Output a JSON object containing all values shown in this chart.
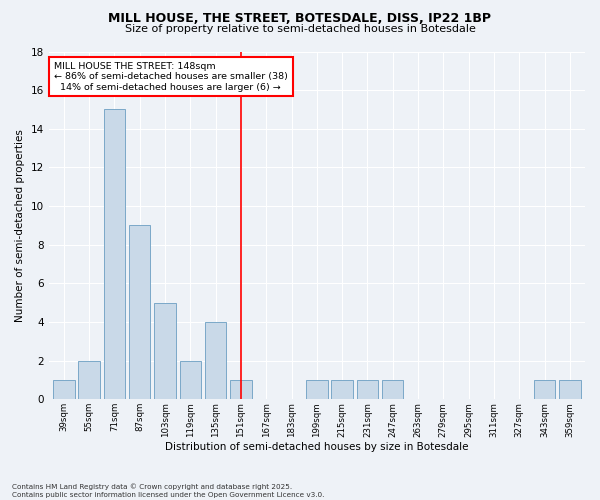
{
  "title": "MILL HOUSE, THE STREET, BOTESDALE, DISS, IP22 1BP",
  "subtitle": "Size of property relative to semi-detached houses in Botesdale",
  "xlabel": "Distribution of semi-detached houses by size in Botesdale",
  "ylabel": "Number of semi-detached properties",
  "categories": [
    "39sqm",
    "55sqm",
    "71sqm",
    "87sqm",
    "103sqm",
    "119sqm",
    "135sqm",
    "151sqm",
    "167sqm",
    "183sqm",
    "199sqm",
    "215sqm",
    "231sqm",
    "247sqm",
    "263sqm",
    "279sqm",
    "295sqm",
    "311sqm",
    "327sqm",
    "343sqm",
    "359sqm"
  ],
  "values": [
    1,
    2,
    15,
    9,
    5,
    2,
    4,
    1,
    0,
    0,
    1,
    1,
    1,
    1,
    0,
    0,
    0,
    0,
    0,
    1,
    1
  ],
  "bar_color": "#c9d9e8",
  "bar_edge_color": "#7aa8c8",
  "property_line_index": 7,
  "property_label": "MILL HOUSE THE STREET: 148sqm",
  "pct_smaller": 86,
  "count_smaller": 38,
  "pct_larger": 14,
  "count_larger": 6,
  "ylim": [
    0,
    18
  ],
  "yticks": [
    0,
    2,
    4,
    6,
    8,
    10,
    12,
    14,
    16,
    18
  ],
  "background_color": "#eef2f7",
  "grid_color": "#ffffff",
  "footer1": "Contains HM Land Registry data © Crown copyright and database right 2025.",
  "footer2": "Contains public sector information licensed under the Open Government Licence v3.0."
}
